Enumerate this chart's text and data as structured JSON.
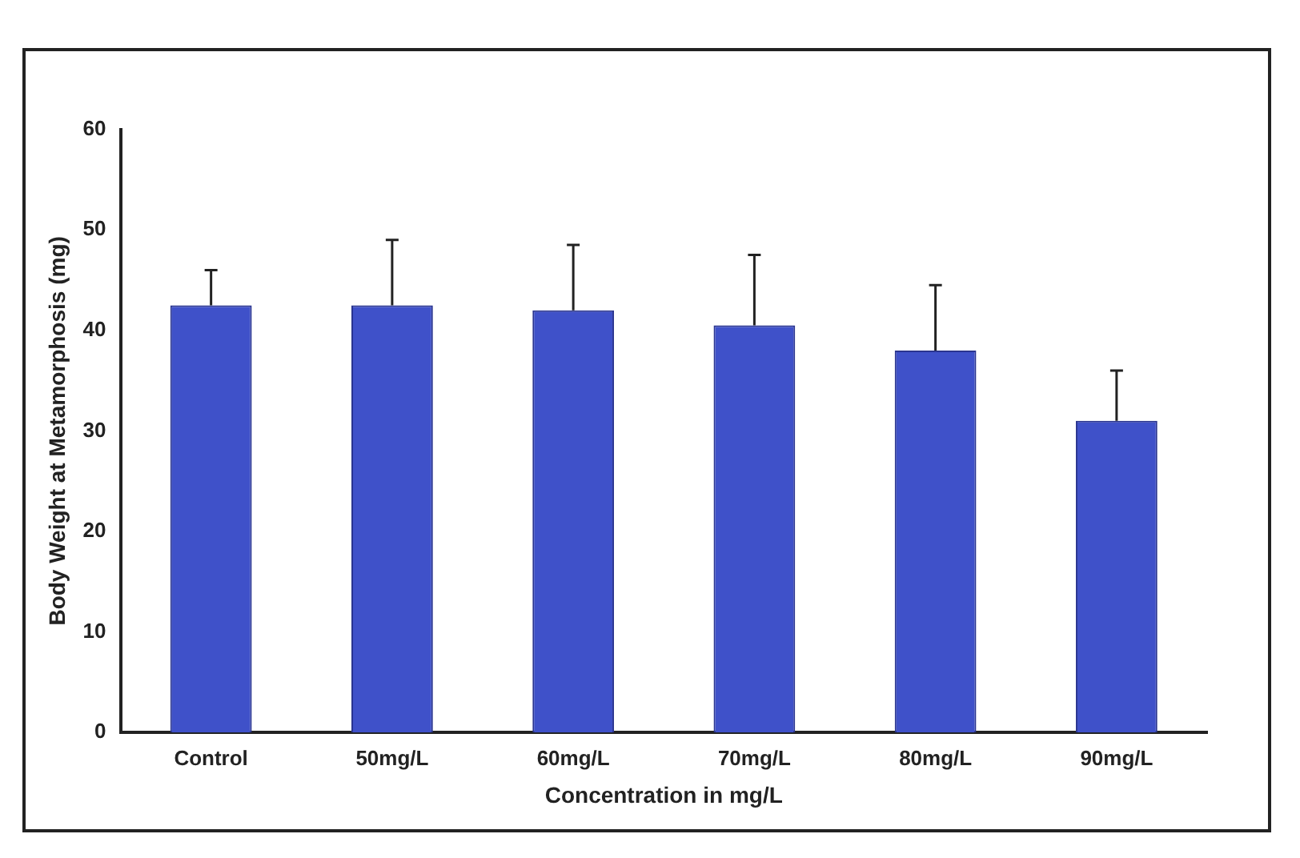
{
  "chart_data": {
    "type": "bar",
    "xlabel": "Concentration in mg/L",
    "ylabel": "Body Weight at Metamorphosis (mg)",
    "categories": [
      "Control",
      "50mg/L",
      "60mg/L",
      "70mg/L",
      "80mg/L",
      "90mg/L"
    ],
    "values": [
      42.5,
      42.5,
      42,
      40.5,
      38,
      31
    ],
    "errors": [
      [
        42.5,
        46
      ],
      [
        42.5,
        49
      ],
      [
        42,
        48.5
      ],
      [
        40.5,
        47.5
      ],
      [
        38,
        44.5
      ],
      [
        31,
        36
      ]
    ],
    "color": "#3f51c9",
    "ylim": [
      0,
      60
    ],
    "yticks": [
      0,
      10,
      20,
      30,
      40,
      50,
      60
    ],
    "grid": false,
    "legend": false
  }
}
